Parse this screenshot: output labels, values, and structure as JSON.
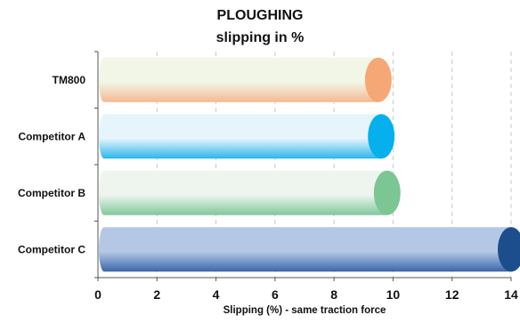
{
  "chart_data": {
    "type": "bar",
    "orientation": "horizontal",
    "title": "PLOUGHING",
    "subtitle": "slipping in %",
    "xlabel": "Slipping (%) - same traction force",
    "ylabel": "",
    "categories": [
      "TM800",
      "Competitor A",
      "Competitor B",
      "Competitor C"
    ],
    "values": [
      9.5,
      9.6,
      9.8,
      14.0
    ],
    "xlim": [
      0,
      14
    ],
    "xticks": [
      0,
      2,
      4,
      6,
      8,
      10,
      12,
      14
    ],
    "grid": "vertical dashed",
    "colors": [
      {
        "light": "#f2f6e6",
        "mid": "#f4b890",
        "cap": "#f5a875"
      },
      {
        "light": "#e6f5fc",
        "mid": "#29b6ec",
        "cap": "#06b0ec"
      },
      {
        "light": "#eef5ee",
        "mid": "#80c89a",
        "cap": "#7cc694"
      },
      {
        "light": "#b4c8e6",
        "mid": "#3a67a8",
        "cap": "#1c4e8e"
      }
    ]
  }
}
